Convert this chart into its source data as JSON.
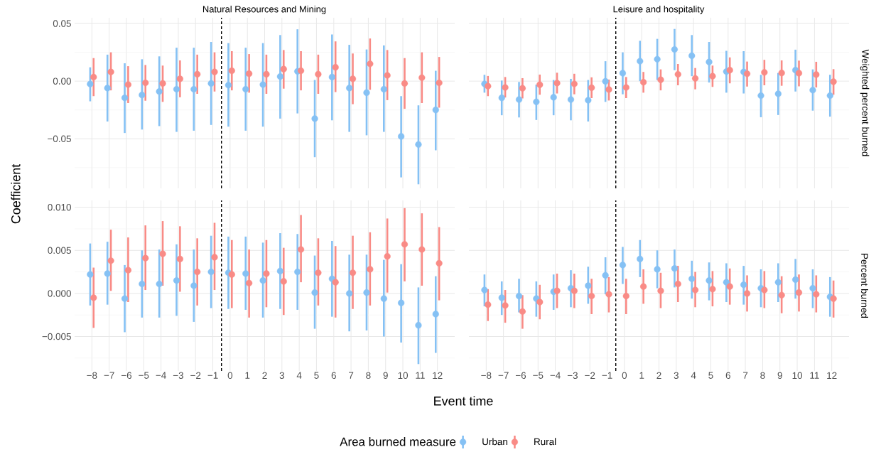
{
  "chart_data": [
    {
      "type": "scatter",
      "title": "Natural Resources and Mining",
      "ylabel": "Coefficient",
      "grid": true,
      "tick_labels": "y",
      "xlim": [
        -9,
        13
      ],
      "xticks": [
        -8,
        -7,
        -6,
        -5,
        -4,
        -3,
        -2,
        -1,
        0,
        1,
        2,
        3,
        4,
        5,
        6,
        7,
        8,
        9,
        10,
        11,
        12
      ],
      "ylim": [
        -0.093,
        0.055
      ],
      "yticks": [
        {
          "value": -0.05,
          "label": "−0.05"
        },
        {
          "value": 0,
          "label": "0.00"
        },
        {
          "value": 0.05,
          "label": "0.05"
        }
      ],
      "ref_lines": [
        {
          "axis": "x",
          "value": -0.5,
          "color": "#000000",
          "line_style": "dashed"
        }
      ],
      "series": [
        {
          "color": "#85c1f4",
          "x": [
            -8.1,
            -7.1,
            -6.1,
            -5.1,
            -4.1,
            -3.1,
            -2.1,
            -1.1,
            -0.1,
            0.9,
            1.9,
            2.9,
            3.9,
            4.9,
            5.9,
            6.9,
            7.9,
            8.9,
            9.9,
            10.9,
            11.9
          ],
          "values": [
            -0.0025,
            -0.006,
            -0.0145,
            -0.012,
            -0.009,
            -0.007,
            -0.007,
            -0.002,
            -0.0035,
            -0.007,
            -0.003,
            0.004,
            0.0085,
            -0.0325,
            0.0035,
            -0.006,
            -0.01,
            -0.007,
            -0.048,
            -0.055,
            -0.025
          ],
          "errors": [
            [
              -0.0175,
              0.012
            ],
            [
              -0.035,
              0.023
            ],
            [
              -0.045,
              0.0155
            ],
            [
              -0.042,
              0.019
            ],
            [
              -0.039,
              0.0215
            ],
            [
              -0.044,
              0.029
            ],
            [
              -0.043,
              0.029
            ],
            [
              -0.038,
              0.034
            ],
            [
              -0.0395,
              0.033
            ],
            [
              -0.043,
              0.029
            ],
            [
              -0.0395,
              0.033
            ],
            [
              -0.0325,
              0.04
            ],
            [
              -0.028,
              0.045
            ],
            [
              -0.066,
              0.001
            ],
            [
              -0.034,
              0.0405
            ],
            [
              -0.044,
              0.0315
            ],
            [
              -0.047,
              0.0275
            ],
            [
              -0.044,
              0.031
            ],
            [
              -0.0835,
              -0.013
            ],
            [
              -0.0895,
              -0.021
            ],
            [
              -0.06,
              0.009
            ]
          ]
        },
        {
          "color": "#f98b86",
          "x": [
            -7.9,
            -6.9,
            -5.9,
            -4.9,
            -3.9,
            -2.9,
            -1.9,
            -0.9,
            0.1,
            1.1,
            2.1,
            3.1,
            4.1,
            5.1,
            6.1,
            7.1,
            8.1,
            9.1,
            10.1,
            11.1,
            12.1
          ],
          "values": [
            0.0035,
            0.008,
            -0.003,
            -0.0015,
            -0.002,
            0.002,
            0.006,
            0.008,
            0.009,
            0.0065,
            0.006,
            0.0105,
            0.009,
            0.006,
            0.012,
            0.002,
            0.015,
            0.005,
            -0.002,
            0.003,
            -0.0015
          ],
          "errors": [
            [
              -0.013,
              0.02
            ],
            [
              -0.008,
              0.025
            ],
            [
              -0.019,
              0.013
            ],
            [
              -0.017,
              0.014
            ],
            [
              -0.018,
              0.0135
            ],
            [
              -0.014,
              0.018
            ],
            [
              -0.011,
              0.023
            ],
            [
              -0.009,
              0.025
            ],
            [
              -0.008,
              0.026
            ],
            [
              -0.01,
              0.0235
            ],
            [
              -0.011,
              0.023
            ],
            [
              -0.0065,
              0.027
            ],
            [
              -0.008,
              0.026
            ],
            [
              -0.011,
              0.023
            ],
            [
              -0.0095,
              0.0345
            ],
            [
              -0.02,
              0.024
            ],
            [
              -0.0075,
              0.037
            ],
            [
              -0.0165,
              0.027
            ],
            [
              -0.024,
              0.02
            ],
            [
              -0.019,
              0.025
            ],
            [
              -0.023,
              0.021
            ]
          ]
        }
      ]
    },
    {
      "type": "scatter",
      "title": "Leisure and hospitality",
      "y2label": "Weighted percent burned",
      "grid": true,
      "tick_labels": false,
      "xlim": [
        -9,
        13
      ],
      "xticks": [
        -8,
        -7,
        -6,
        -5,
        -4,
        -3,
        -2,
        -1,
        0,
        1,
        2,
        3,
        4,
        5,
        6,
        7,
        8,
        9,
        10,
        11,
        12
      ],
      "ylim": [
        -0.093,
        0.055
      ],
      "yticks": [
        -0.05,
        0,
        0.05
      ],
      "ref_lines": [
        {
          "axis": "x",
          "value": -0.5,
          "color": "#000000",
          "line_style": "dashed"
        }
      ],
      "series": [
        {
          "color": "#85c1f4",
          "x": [
            -8.1,
            -7.1,
            -6.1,
            -5.1,
            -4.1,
            -3.1,
            -2.1,
            -1.1,
            -0.1,
            0.9,
            1.9,
            2.9,
            3.9,
            4.9,
            5.9,
            6.9,
            7.9,
            8.9,
            9.9,
            10.9,
            11.9
          ],
          "values": [
            -0.0024,
            -0.0145,
            -0.016,
            -0.018,
            -0.014,
            -0.016,
            -0.0166,
            -0.0002,
            0.0069,
            0.0173,
            0.019,
            0.0275,
            0.022,
            0.0166,
            0.0083,
            0.008,
            -0.0126,
            -0.011,
            0.0095,
            -0.0078,
            -0.0126
          ],
          "errors": [
            [
              -0.01,
              0.0055
            ],
            [
              -0.0296,
              0.0005
            ],
            [
              -0.0315,
              -0.0007
            ],
            [
              -0.0337,
              -0.003
            ],
            [
              -0.0296,
              0.001
            ],
            [
              -0.034,
              0.002
            ],
            [
              -0.035,
              0.001
            ],
            [
              -0.018,
              0.0173
            ],
            [
              -0.0114,
              0.025
            ],
            [
              0.0,
              0.035
            ],
            [
              0.001,
              0.0367
            ],
            [
              0.0095,
              0.0453
            ],
            [
              0.0043,
              0.04
            ],
            [
              -0.0012,
              0.034
            ],
            [
              -0.01,
              0.0263
            ],
            [
              -0.0107,
              0.026
            ],
            [
              -0.0313,
              0.0055
            ],
            [
              -0.0294,
              0.0071
            ],
            [
              -0.009,
              0.0273
            ],
            [
              -0.0256,
              0.0102
            ],
            [
              -0.0308,
              0.0055
            ]
          ]
        },
        {
          "color": "#f98b86",
          "x": [
            -7.9,
            -6.9,
            -5.9,
            -4.9,
            -3.9,
            -2.9,
            -1.9,
            -0.9,
            0.1,
            1.1,
            2.1,
            3.1,
            4.1,
            5.1,
            6.1,
            7.1,
            8.1,
            9.1,
            10.1,
            11.1,
            12.1
          ],
          "values": [
            -0.0043,
            -0.0055,
            -0.0062,
            -0.0031,
            -0.0017,
            -0.0024,
            -0.0057,
            -0.0073,
            -0.0055,
            -0.0009,
            0.0012,
            0.0059,
            0.0024,
            0.0043,
            0.0095,
            0.0064,
            0.0076,
            0.0071,
            0.0069,
            0.0057,
            -0.0005
          ],
          "errors": [
            [
              -0.013,
              0.0045
            ],
            [
              -0.0142,
              0.0036
            ],
            [
              -0.015,
              0.0026
            ],
            [
              -0.0118,
              0.0057
            ],
            [
              -0.0107,
              0.0073
            ],
            [
              -0.0114,
              0.0064
            ],
            [
              -0.0147,
              0.0033
            ],
            [
              -0.0168,
              0.0014
            ],
            [
              -0.0147,
              0.0036
            ],
            [
              -0.01,
              0.008
            ],
            [
              -0.008,
              0.0102
            ],
            [
              -0.0036,
              0.0149
            ],
            [
              -0.0071,
              0.0114
            ],
            [
              -0.005,
              0.0135
            ],
            [
              -0.0019,
              0.0206
            ],
            [
              -0.0047,
              0.017
            ],
            [
              -0.0036,
              0.0185
            ],
            [
              -0.004,
              0.018
            ],
            [
              -0.0045,
              0.0178
            ],
            [
              -0.0055,
              0.0168
            ],
            [
              -0.0118,
              0.0104
            ]
          ]
        }
      ]
    },
    {
      "type": "scatter",
      "xlabel": "Event time",
      "grid": true,
      "legend": "bottom",
      "legend_title": "Area burned measure",
      "xlim": [
        -9,
        13
      ],
      "xticks": [
        {
          "value": -8,
          "label": "−8"
        },
        {
          "value": -7,
          "label": "−7"
        },
        {
          "value": -6,
          "label": "−6"
        },
        {
          "value": -5,
          "label": "−5"
        },
        {
          "value": -4,
          "label": "−4"
        },
        {
          "value": -3,
          "label": "−3"
        },
        {
          "value": -2,
          "label": "−2"
        },
        {
          "value": -1,
          "label": "−1"
        },
        0,
        1,
        2,
        3,
        4,
        5,
        6,
        7,
        8,
        9,
        10,
        11,
        12
      ],
      "ylim": [
        -0.009,
        0.0108
      ],
      "yticks": [
        {
          "value": -0.005,
          "label": "−0.005"
        },
        {
          "value": 0,
          "label": "0.000"
        },
        {
          "value": 0.005,
          "label": "0.005"
        },
        {
          "value": 0.01,
          "label": "0.010"
        }
      ],
      "ref_lines": [
        {
          "axis": "x",
          "value": -0.5,
          "color": "#000000",
          "line_style": "dashed"
        }
      ],
      "series": [
        {
          "name": "Urban",
          "color": "#85c1f4",
          "x": [
            -8.1,
            -7.1,
            -6.1,
            -5.1,
            -4.1,
            -3.1,
            -2.1,
            -1.1,
            -0.1,
            0.9,
            1.9,
            2.9,
            3.9,
            4.9,
            5.9,
            6.9,
            7.9,
            8.9,
            9.9,
            10.9,
            11.9
          ],
          "values": [
            0.0022,
            0.0023,
            -0.0006,
            0.0011,
            0.0011,
            0.0015,
            0.0009,
            0.0025,
            0.0024,
            0.0023,
            0.0015,
            0.0026,
            0.0025,
            0.0001,
            0.0017,
            0.0,
            0.0001,
            -0.0006,
            -0.0011,
            -0.0037,
            -0.0024
          ],
          "errors": [
            [
              -0.0014,
              0.0058
            ],
            [
              -0.0013,
              0.006
            ],
            [
              -0.0045,
              0.0033
            ],
            [
              -0.0028,
              0.005
            ],
            [
              -0.0028,
              0.0051
            ],
            [
              -0.0026,
              0.0057
            ],
            [
              -0.0033,
              0.0051
            ],
            [
              -0.0017,
              0.0067
            ],
            [
              -0.0018,
              0.0066
            ],
            [
              -0.0019,
              0.0066
            ],
            [
              -0.0028,
              0.0059
            ],
            [
              -0.0018,
              0.007
            ],
            [
              -0.0019,
              0.0069
            ],
            [
              -0.0041,
              0.0044
            ],
            [
              -0.0027,
              0.0061
            ],
            [
              -0.0044,
              0.0045
            ],
            [
              -0.0043,
              0.0045
            ],
            [
              -0.005,
              0.0039
            ],
            [
              -0.0057,
              0.0034
            ],
            [
              -0.0082,
              0.0007
            ],
            [
              -0.0069,
              0.002
            ]
          ]
        },
        {
          "name": "Rural",
          "color": "#f98b86",
          "x": [
            -7.9,
            -6.9,
            -5.9,
            -4.9,
            -3.9,
            -2.9,
            -1.9,
            -0.9,
            0.1,
            1.1,
            2.1,
            3.1,
            4.1,
            5.1,
            6.1,
            7.1,
            8.1,
            9.1,
            10.1,
            11.1,
            12.1
          ],
          "values": [
            -0.0005,
            0.0038,
            0.0027,
            0.0041,
            0.0046,
            0.004,
            0.0025,
            0.0042,
            0.0022,
            0.0012,
            0.0023,
            0.0014,
            0.0051,
            0.0024,
            0.0013,
            0.0024,
            0.0028,
            0.0043,
            0.0057,
            0.0051,
            0.0035
          ],
          "errors": [
            [
              -0.004,
              0.003
            ],
            [
              0.0003,
              0.0074
            ],
            [
              -0.001,
              0.0065
            ],
            [
              0.0004,
              0.0079
            ],
            [
              0.0009,
              0.0084
            ],
            [
              0.0002,
              0.0078
            ],
            [
              -0.0014,
              0.0064
            ],
            [
              0.0004,
              0.0082
            ],
            [
              -0.0017,
              0.0062
            ],
            [
              -0.0028,
              0.0051
            ],
            [
              -0.0016,
              0.0062
            ],
            [
              -0.0025,
              0.0053
            ],
            [
              0.0013,
              0.0091
            ],
            [
              -0.0014,
              0.0064
            ],
            [
              -0.0028,
              0.0055
            ],
            [
              -0.0018,
              0.0067
            ],
            [
              -0.0014,
              0.0071
            ],
            [
              0.0001,
              0.0087
            ],
            [
              0.0014,
              0.0099
            ],
            [
              0.0009,
              0.0093
            ],
            [
              -0.0008,
              0.0077
            ]
          ]
        }
      ]
    },
    {
      "type": "scatter",
      "y2label": "Percent burned",
      "grid": true,
      "tick_labels": "x",
      "xlim": [
        -9,
        13
      ],
      "xticks": [
        {
          "value": -8,
          "label": "−8"
        },
        {
          "value": -7,
          "label": "−7"
        },
        {
          "value": -6,
          "label": "−6"
        },
        {
          "value": -5,
          "label": "−5"
        },
        {
          "value": -4,
          "label": "−4"
        },
        {
          "value": -3,
          "label": "−3"
        },
        {
          "value": -2,
          "label": "−2"
        },
        {
          "value": -1,
          "label": "−1"
        },
        0,
        1,
        2,
        3,
        4,
        5,
        6,
        7,
        8,
        9,
        10,
        11,
        12
      ],
      "ylim": [
        -0.009,
        0.0108
      ],
      "yticks": [
        -0.005,
        0,
        0.005,
        0.01
      ],
      "ref_lines": [
        {
          "axis": "x",
          "value": -0.5,
          "color": "#000000",
          "line_style": "dashed"
        }
      ],
      "series": [
        {
          "color": "#85c1f4",
          "x": [
            -8.1,
            -7.1,
            -6.1,
            -5.1,
            -4.1,
            -3.1,
            -2.1,
            -1.1,
            -0.1,
            0.9,
            1.9,
            2.9,
            3.9,
            4.9,
            5.9,
            6.9,
            7.9,
            8.9,
            9.9,
            10.9,
            11.9
          ],
          "values": [
            0.0004,
            -0.0005,
            -0.0003,
            -0.0006,
            0.0002,
            0.0006,
            0.0009,
            0.0021,
            0.0033,
            0.004,
            0.0028,
            0.0029,
            0.0017,
            0.0015,
            0.0013,
            0.001,
            0.0006,
            0.0013,
            0.0016,
            0.0006,
            -0.0004
          ],
          "errors": [
            [
              -0.0015,
              0.0022
            ],
            [
              -0.0025,
              0.0014
            ],
            [
              -0.0022,
              0.0017
            ],
            [
              -0.0027,
              0.0014
            ],
            [
              -0.0019,
              0.0022
            ],
            [
              -0.0016,
              0.0027
            ],
            [
              -0.0012,
              0.0031
            ],
            [
              -0.0001,
              0.0042
            ],
            [
              0.0011,
              0.0054
            ],
            [
              0.0019,
              0.0062
            ],
            [
              0.0006,
              0.005
            ],
            [
              0.0007,
              0.0051
            ],
            [
              -0.0006,
              0.0038
            ],
            [
              -0.0008,
              0.0036
            ],
            [
              -0.001,
              0.0035
            ],
            [
              -0.0013,
              0.0032
            ],
            [
              -0.0016,
              0.0028
            ],
            [
              -0.001,
              0.0035
            ],
            [
              -0.0006,
              0.004
            ],
            [
              -0.0017,
              0.0028
            ],
            [
              -0.0027,
              0.0019
            ]
          ]
        },
        {
          "color": "#f98b86",
          "x": [
            -7.9,
            -6.9,
            -5.9,
            -4.9,
            -3.9,
            -2.9,
            -1.9,
            -0.9,
            0.1,
            1.1,
            2.1,
            3.1,
            4.1,
            5.1,
            6.1,
            7.1,
            8.1,
            9.1,
            10.1,
            11.1,
            12.1
          ],
          "values": [
            -0.0013,
            -0.0014,
            -0.0021,
            -0.001,
            0.0003,
            0.0003,
            -0.0003,
            -0.0001,
            -0.0003,
            0.0008,
            0.0003,
            0.0011,
            0.0004,
            0.0005,
            0.0008,
            0.0,
            0.0004,
            -0.0002,
            0.0001,
            -0.0001,
            -0.0006
          ],
          "errors": [
            [
              -0.0032,
              0.0005
            ],
            [
              -0.0034,
              0.0004
            ],
            [
              -0.0041,
              -0.0002
            ],
            [
              -0.003,
              0.001
            ],
            [
              -0.0017,
              0.0023
            ],
            [
              -0.0017,
              0.0023
            ],
            [
              -0.0024,
              0.0017
            ],
            [
              -0.0022,
              0.0019
            ],
            [
              -0.0024,
              0.0017
            ],
            [
              -0.0012,
              0.0028
            ],
            [
              -0.0017,
              0.0024
            ],
            [
              -0.001,
              0.0032
            ],
            [
              -0.0016,
              0.0025
            ],
            [
              -0.0015,
              0.0026
            ],
            [
              -0.0013,
              0.0029
            ],
            [
              -0.0021,
              0.0021
            ],
            [
              -0.0017,
              0.0026
            ],
            [
              -0.0023,
              0.002
            ],
            [
              -0.0021,
              0.0022
            ],
            [
              -0.0022,
              0.0021
            ],
            [
              -0.0028,
              0.0015
            ]
          ]
        }
      ]
    }
  ]
}
